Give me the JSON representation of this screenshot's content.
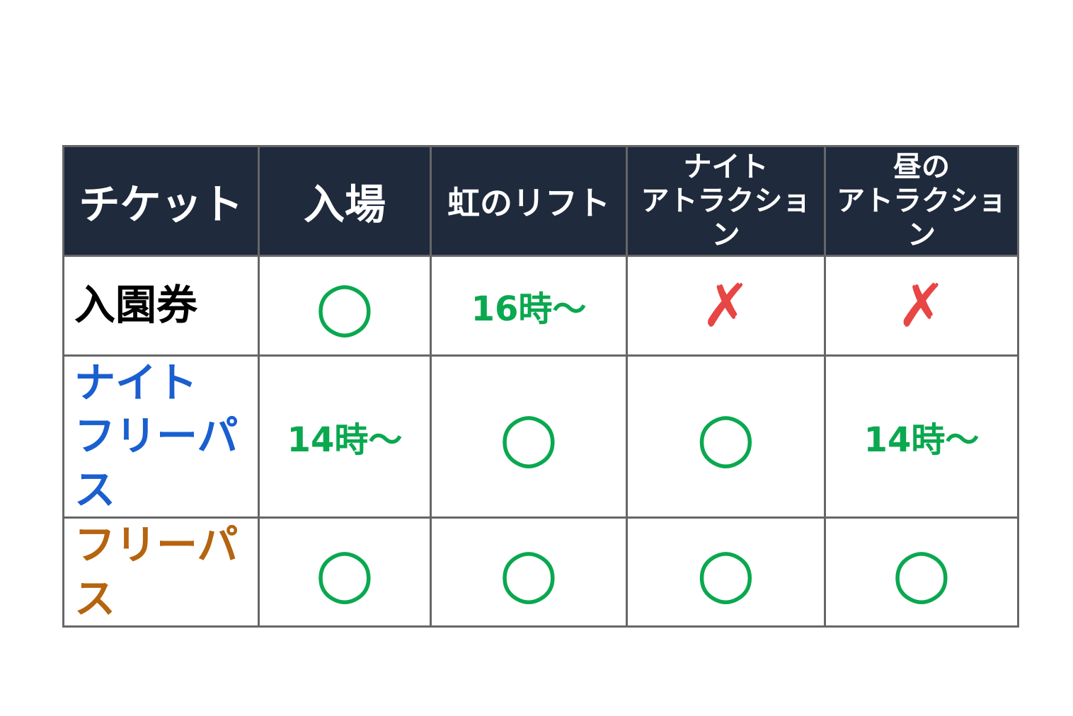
{
  "colors": {
    "header_bg": "#1f2a3c",
    "ok": "#0aa84f",
    "ng": "#e84545",
    "night_pass": "#1a5fd0",
    "free_pass": "#b5640f",
    "border": "#666666"
  },
  "headers": [
    "チケット",
    "入場",
    "虹のリフト",
    "ナイト\nアトラクション",
    "昼の\nアトラクション"
  ],
  "header_lines": {
    "h3": [
      "ナイト",
      "アトラクション"
    ],
    "h4": [
      "昼の",
      "アトラクション"
    ]
  },
  "rows": [
    {
      "label": "入園券",
      "label_lines": [
        "入園券"
      ],
      "cells": [
        "○",
        "16時〜",
        "✗",
        "✗"
      ]
    },
    {
      "label": "ナイトフリーパス",
      "label_lines": [
        "ナイト",
        "フリーパス"
      ],
      "cells": [
        "14時〜",
        "○",
        "○",
        "14時〜"
      ]
    },
    {
      "label": "フリーパス",
      "label_lines": [
        "フリーパス"
      ],
      "cells": [
        "○",
        "○",
        "○",
        "○"
      ]
    }
  ]
}
